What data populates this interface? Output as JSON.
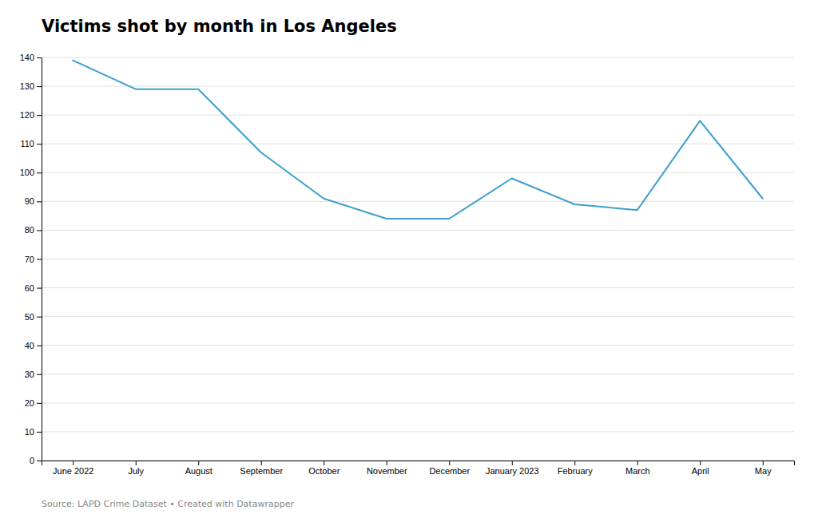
{
  "chart_data": {
    "type": "line",
    "title": "Victims shot by month in Los Angeles",
    "caption": "Source: LAPD Crime Dataset • Created with Datawrapper",
    "categories": [
      "June 2022",
      "July",
      "August",
      "September",
      "October",
      "November",
      "December",
      "January 2023",
      "February",
      "March",
      "April",
      "May"
    ],
    "values": [
      139,
      129,
      129,
      107,
      91,
      84,
      84,
      98,
      89,
      87,
      118,
      91
    ],
    "color": "#3b9ecf",
    "ylim": [
      0,
      140
    ],
    "yticks": [
      0,
      10,
      20,
      30,
      40,
      50,
      60,
      70,
      80,
      90,
      100,
      110,
      120,
      130,
      140
    ],
    "grid": true
  }
}
